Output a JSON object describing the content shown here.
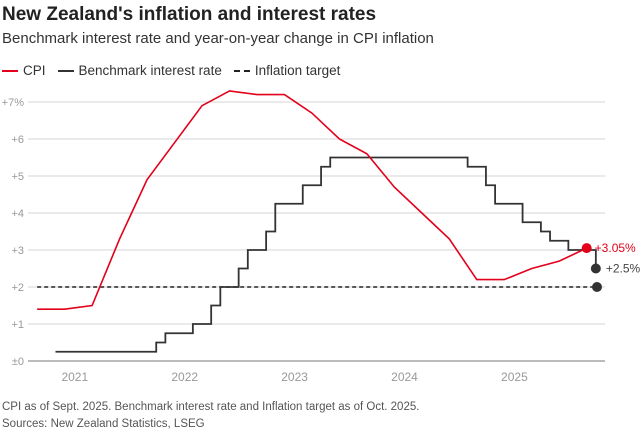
{
  "chart_data": {
    "type": "line",
    "title": "New Zealand's inflation and interest rates",
    "subtitle": "Benchmark interest rate and year-on-year change in CPI inflation",
    "xlim": [
      "2020-08",
      "2025-11"
    ],
    "ylim": [
      0,
      7.5
    ],
    "y_ticks": [
      0,
      1,
      2,
      3,
      4,
      5,
      6,
      7
    ],
    "y_tick_labels": [
      "±0",
      "+1",
      "+2",
      "+3",
      "+4",
      "+5",
      "+6",
      "+7%"
    ],
    "x_ticks": [
      "2021-01",
      "2022-01",
      "2023-01",
      "2024-01",
      "2025-01"
    ],
    "x_tick_labels": [
      "2021",
      "2022",
      "2023",
      "2024",
      "2025"
    ],
    "grid": true,
    "legend_placement": "top-left",
    "series": [
      {
        "name": "CPI",
        "color": "#e3001b",
        "style": "line",
        "x": [
          "2020-09",
          "2020-12",
          "2021-03",
          "2021-06",
          "2021-09",
          "2021-12",
          "2022-03",
          "2022-06",
          "2022-09",
          "2022-12",
          "2023-03",
          "2023-06",
          "2023-09",
          "2023-12",
          "2024-03",
          "2024-06",
          "2024-09",
          "2024-12",
          "2025-03",
          "2025-06",
          "2025-09"
        ],
        "y": [
          1.4,
          1.4,
          1.5,
          3.3,
          4.9,
          5.9,
          6.9,
          7.3,
          7.2,
          7.2,
          6.7,
          6.0,
          5.6,
          4.7,
          4.0,
          3.3,
          2.2,
          2.2,
          2.5,
          2.7,
          3.05
        ],
        "end_label": "+3.05%"
      },
      {
        "name": "Benchmark interest rate",
        "color": "#333333",
        "style": "step",
        "x": [
          "2020-11",
          "2021-10",
          "2021-11",
          "2022-02",
          "2022-04",
          "2022-05",
          "2022-07",
          "2022-08",
          "2022-10",
          "2022-11",
          "2023-02",
          "2023-04",
          "2023-05",
          "2024-08",
          "2024-10",
          "2024-11",
          "2025-02",
          "2025-04",
          "2025-05",
          "2025-07",
          "2025-10"
        ],
        "y": [
          0.25,
          0.5,
          0.75,
          1.0,
          1.5,
          2.0,
          2.5,
          3.0,
          3.5,
          4.25,
          4.75,
          5.25,
          5.5,
          5.25,
          4.75,
          4.25,
          3.75,
          3.5,
          3.25,
          3.0,
          2.5
        ],
        "end_label": "+2.5%"
      },
      {
        "name": "Inflation target",
        "color": "#222222",
        "style": "dashed",
        "x": [
          "2020-09",
          "2025-10"
        ],
        "y": [
          2,
          2
        ]
      }
    ]
  },
  "footer": {
    "note": "CPI as of Sept. 2025. Benchmark interest rate and Inflation target as of Oct. 2025.",
    "source": "Sources: New Zealand Statistics, LSEG"
  }
}
